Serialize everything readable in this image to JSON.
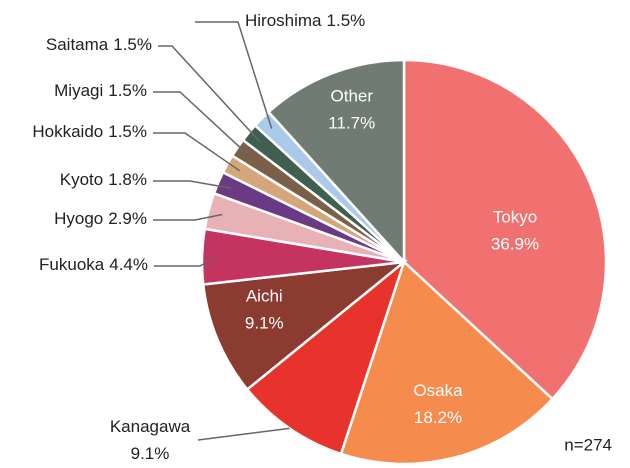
{
  "chart_data": {
    "type": "pie",
    "categories": [
      "Tokyo",
      "Osaka",
      "Kanagawa",
      "Aichi",
      "Fukuoka",
      "Hyogo",
      "Kyoto",
      "Hokkaido",
      "Miyagi",
      "Saitama",
      "Hiroshima",
      "Other"
    ],
    "values": [
      36.9,
      18.2,
      9.1,
      9.1,
      4.4,
      2.9,
      1.8,
      1.5,
      1.5,
      1.5,
      1.5,
      11.7
    ],
    "value_labels": [
      "36.9%",
      "18.2%",
      "9.1%",
      "9.1%",
      "4.4%",
      "2.9%",
      "1.8%",
      "1.5%",
      "1.5%",
      "1.5%",
      "1.5%",
      "11.7%"
    ],
    "colors": [
      "#f07170",
      "#f58b4c",
      "#e8332c",
      "#8c3b30",
      "#c53361",
      "#e8b1b5",
      "#6b3a82",
      "#d5a67b",
      "#7a5f49",
      "#3f5f51",
      "#abc9e8",
      "#6f7b73"
    ],
    "annotation": "n=274"
  }
}
